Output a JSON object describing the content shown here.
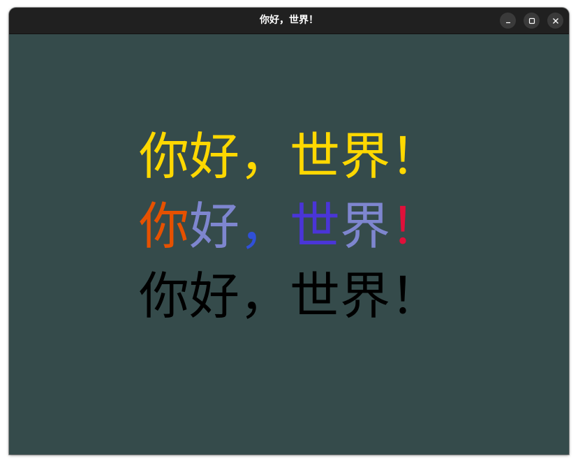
{
  "window": {
    "title": "你好，世界！",
    "controls": {
      "minimize": "minimize-icon",
      "maximize": "maximize-icon",
      "close": "close-icon"
    },
    "background": "#354b4b",
    "titlebar_color": "#202020"
  },
  "lines": [
    {
      "chars": [
        {
          "text": "你",
          "color": "#ffd800"
        },
        {
          "text": "好",
          "color": "#ffd800"
        },
        {
          "text": "，",
          "color": "#ffd800"
        },
        {
          "text": "世",
          "color": "#ffd800"
        },
        {
          "text": "界",
          "color": "#ffd800"
        },
        {
          "text": "！",
          "color": "#ffd800"
        }
      ]
    },
    {
      "chars": [
        {
          "text": "你",
          "color": "#e65100"
        },
        {
          "text": "好",
          "color": "#7e86cf"
        },
        {
          "text": "，",
          "color": "#3050d8"
        },
        {
          "text": "世",
          "color": "#4a35d8"
        },
        {
          "text": "界",
          "color": "#7e86cf"
        },
        {
          "text": "！",
          "color": "#e0103a"
        }
      ]
    },
    {
      "chars": [
        {
          "text": "你",
          "color": "#000000"
        },
        {
          "text": "好",
          "color": "#000000"
        },
        {
          "text": "，",
          "color": "#000000"
        },
        {
          "text": "世",
          "color": "#000000"
        },
        {
          "text": "界",
          "color": "#000000"
        },
        {
          "text": "！",
          "color": "#000000"
        }
      ]
    }
  ]
}
